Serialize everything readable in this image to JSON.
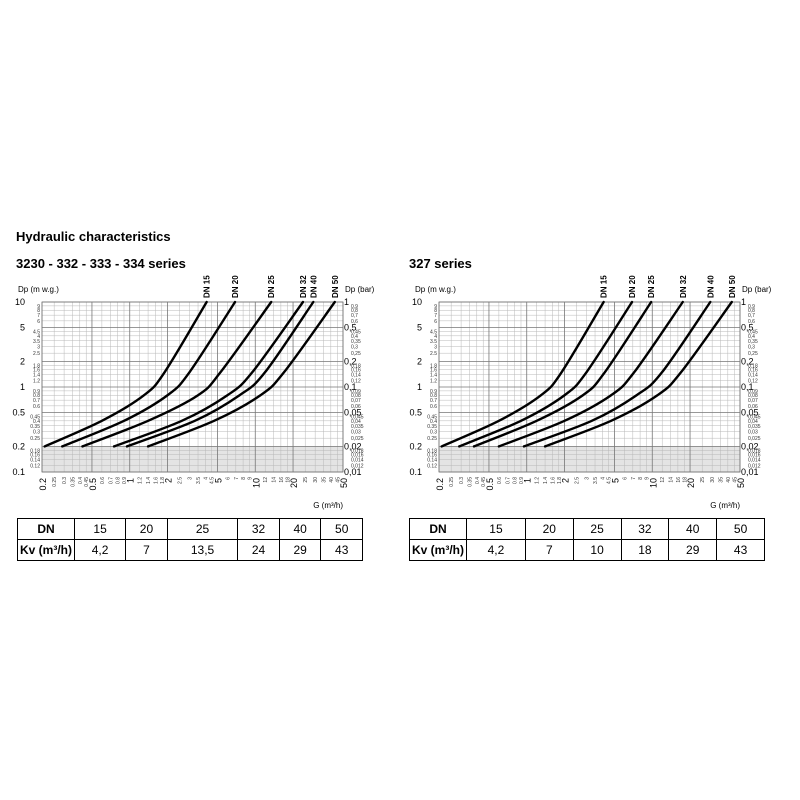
{
  "page": {
    "title": "Hydraulic characteristics"
  },
  "chart_data": [
    {
      "type": "line",
      "title": "3230 - 332 - 333 - 334 series",
      "xlabel": "G (m³/h)",
      "ylabel_left": "Dp (m w.g.)",
      "ylabel_right": "Dp (bar)",
      "x_scale": "log",
      "y_scale": "log",
      "xlim": [
        0.2,
        50
      ],
      "ylim_left": [
        0.1,
        10
      ],
      "ylim_right": [
        0.01,
        1
      ],
      "grid": true,
      "shaded_region_y": [
        0.1,
        0.2
      ],
      "x_major_ticks": [
        "0.2",
        "0.5",
        "1",
        "2",
        "5",
        "10",
        "20",
        "50"
      ],
      "x_minor_ticks": [
        "0.25",
        "0.3",
        "0.35",
        "0.4",
        "0.45",
        "0.6",
        "0.7",
        "0.8",
        "0.9",
        "1.2",
        "1.4",
        "1.6",
        "1.8",
        "2.5",
        "3",
        "3.5",
        "4",
        "4.5",
        "6",
        "7",
        "8",
        "9",
        "12",
        "14",
        "16",
        "18",
        "25",
        "30",
        "35",
        "40",
        "45"
      ],
      "y_left_major_ticks": [
        "0.1",
        "0.2",
        "0.5",
        "1",
        "2",
        "5",
        "10"
      ],
      "y_left_minor_ticks": [
        "0.12",
        "0.14",
        "0.16",
        "0.18",
        "0.25",
        "0.3",
        "0.35",
        "0.4",
        "0.45",
        "0.6",
        "0.7",
        "0.8",
        "0.9",
        "1.2",
        "1.4",
        "1.6",
        "1.8",
        "2.5",
        "3",
        "3.5",
        "4",
        "4.5",
        "6",
        "7",
        "8",
        "9"
      ],
      "y_right_major_ticks": [
        "0,01",
        "0,02",
        "0,05",
        "0,1",
        "0,2",
        "0,5",
        "1"
      ],
      "y_right_minor_ticks": [
        "0,012",
        "0,014",
        "0,016",
        "0,018",
        "0,025",
        "0,03",
        "0,035",
        "0,04",
        "0,045",
        "0,06",
        "0,07",
        "0,08",
        "0,09",
        "0,12",
        "0,14",
        "0,16",
        "0,18",
        "0,25",
        "0,3",
        "0,35",
        "0,4",
        "0,45",
        "0,6",
        "0,7",
        "0,8",
        "0,9"
      ],
      "series": [
        {
          "name": "DN 15",
          "kv": 4.2,
          "x": [
            0.21,
            0.6,
            1.3,
            1.9,
            4.1
          ],
          "y": [
            0.2,
            0.4,
            0.8,
            1.5,
            10
          ]
        },
        {
          "name": "DN 20",
          "kv": 7,
          "x": [
            0.29,
            0.9,
            2.0,
            3.0,
            6.9
          ],
          "y": [
            0.2,
            0.4,
            0.8,
            1.5,
            10
          ]
        },
        {
          "name": "DN 25",
          "kv": 13.5,
          "x": [
            0.42,
            1.4,
            3.5,
            5.3,
            13.4
          ],
          "y": [
            0.2,
            0.4,
            0.8,
            1.5,
            10
          ]
        },
        {
          "name": "DN 32",
          "kv": 24,
          "x": [
            0.75,
            2.6,
            6.0,
            9.5,
            24
          ],
          "y": [
            0.2,
            0.4,
            0.8,
            1.5,
            10
          ]
        },
        {
          "name": "DN 40",
          "kv": 29,
          "x": [
            0.95,
            3.3,
            7.5,
            12,
            29
          ],
          "y": [
            0.2,
            0.4,
            0.8,
            1.5,
            10
          ]
        },
        {
          "name": "DN 50",
          "kv": 43,
          "x": [
            1.4,
            4.7,
            11,
            17,
            43
          ],
          "y": [
            0.2,
            0.4,
            0.8,
            1.5,
            10
          ]
        }
      ]
    },
    {
      "type": "line",
      "title": "327 series",
      "xlabel": "G (m³/h)",
      "ylabel_left": "Dp (m w.g.)",
      "ylabel_right": "Dp (bar)",
      "x_scale": "log",
      "y_scale": "log",
      "xlim": [
        0.2,
        50
      ],
      "ylim_left": [
        0.1,
        10
      ],
      "ylim_right": [
        0.01,
        1
      ],
      "grid": true,
      "shaded_region_y": [
        0.1,
        0.2
      ],
      "x_major_ticks": [
        "0.2",
        "0.5",
        "1",
        "2",
        "5",
        "10",
        "20",
        "50"
      ],
      "x_minor_ticks": [
        "0.25",
        "0.3",
        "0.35",
        "0.4",
        "0.45",
        "0.6",
        "0.7",
        "0.8",
        "0.9",
        "1.2",
        "1.4",
        "1.6",
        "1.8",
        "2.5",
        "3",
        "3.5",
        "4",
        "4.5",
        "6",
        "7",
        "8",
        "9",
        "12",
        "14",
        "16",
        "18",
        "25",
        "30",
        "35",
        "40",
        "45"
      ],
      "y_left_major_ticks": [
        "0.1",
        "0.2",
        "0.5",
        "1",
        "2",
        "5",
        "10"
      ],
      "y_left_minor_ticks": [
        "0.12",
        "0.14",
        "0.16",
        "0.18",
        "0.25",
        "0.3",
        "0.35",
        "0.4",
        "0.45",
        "0.6",
        "0.7",
        "0.8",
        "0.9",
        "1.2",
        "1.4",
        "1.6",
        "1.8",
        "2.5",
        "3",
        "3.5",
        "4",
        "4.5",
        "6",
        "7",
        "8",
        "9"
      ],
      "y_right_major_ticks": [
        "0,01",
        "0,02",
        "0,05",
        "0,1",
        "0,2",
        "0,5",
        "1"
      ],
      "y_right_minor_ticks": [
        "0,012",
        "0,014",
        "0,016",
        "0,018",
        "0,025",
        "0,03",
        "0,035",
        "0,04",
        "0,045",
        "0,06",
        "0,07",
        "0,08",
        "0,09",
        "0,12",
        "0,14",
        "0,16",
        "0,18",
        "0,25",
        "0,3",
        "0,35",
        "0,4",
        "0,45",
        "0,6",
        "0,7",
        "0,8",
        "0,9"
      ],
      "series": [
        {
          "name": "DN 15",
          "kv": 4.2,
          "x": [
            0.21,
            0.6,
            1.3,
            1.9,
            4.1
          ],
          "y": [
            0.2,
            0.4,
            0.8,
            1.5,
            10
          ]
        },
        {
          "name": "DN 20",
          "kv": 7,
          "x": [
            0.29,
            0.9,
            2.0,
            3.0,
            6.9
          ],
          "y": [
            0.2,
            0.4,
            0.8,
            1.5,
            10
          ]
        },
        {
          "name": "DN 25",
          "kv": 10,
          "x": [
            0.38,
            1.2,
            2.8,
            4.2,
            9.8
          ],
          "y": [
            0.2,
            0.4,
            0.8,
            1.5,
            10
          ]
        },
        {
          "name": "DN 32",
          "kv": 18,
          "x": [
            0.6,
            2.0,
            4.7,
            7.2,
            17.5
          ],
          "y": [
            0.2,
            0.4,
            0.8,
            1.5,
            10
          ]
        },
        {
          "name": "DN 40",
          "kv": 29,
          "x": [
            0.95,
            3.3,
            7.5,
            12,
            29
          ],
          "y": [
            0.2,
            0.4,
            0.8,
            1.5,
            10
          ]
        },
        {
          "name": "DN 50",
          "kv": 43,
          "x": [
            1.4,
            4.7,
            11,
            17,
            43
          ],
          "y": [
            0.2,
            0.4,
            0.8,
            1.5,
            10
          ]
        }
      ]
    }
  ],
  "tables": [
    {
      "dn_label": "DN",
      "kv_label": "Kv (m³/h)",
      "dn": [
        "15",
        "20",
        "25",
        "32",
        "40",
        "50"
      ],
      "kv": [
        "4,2",
        "7",
        "13,5",
        "24",
        "29",
        "43"
      ]
    },
    {
      "dn_label": "DN",
      "kv_label": "Kv (m³/h)",
      "dn": [
        "15",
        "20",
        "25",
        "32",
        "40",
        "50"
      ],
      "kv": [
        "4,2",
        "7",
        "10",
        "18",
        "29",
        "43"
      ]
    }
  ]
}
